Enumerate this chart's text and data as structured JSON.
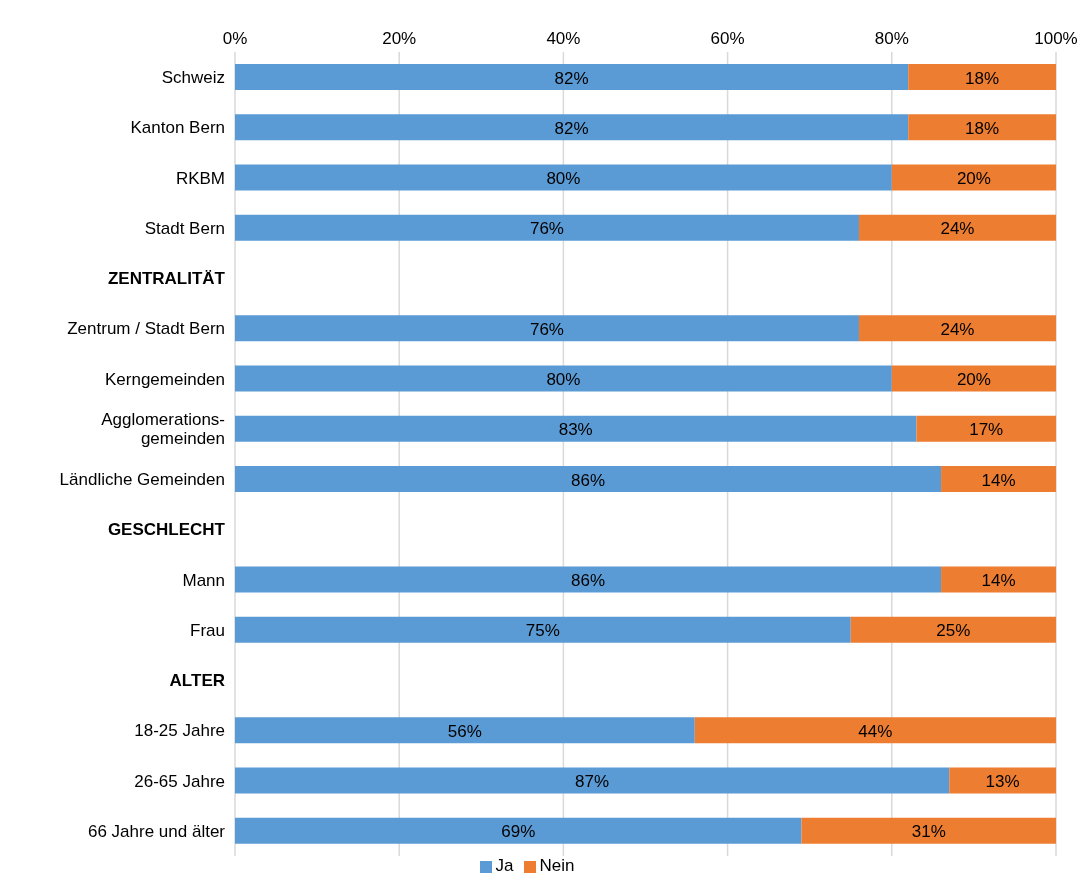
{
  "chart_data": {
    "type": "bar",
    "orientation": "horizontal",
    "stacked": true,
    "categories": [
      "Schweiz",
      "Kanton Bern",
      "RKBM",
      "Stadt Bern",
      "ZENTRALITÄT",
      "Zentrum / Stadt Bern",
      "Kerngemeinden",
      "Agglomerations-\ngemeinden",
      "Ländliche Gemeinden",
      "GESCHLECHT",
      "Mann",
      "Frau",
      "ALTER",
      "18-25 Jahre",
      "26-65 Jahre",
      "66 Jahre und älter"
    ],
    "series": [
      {
        "name": "Ja",
        "color": "#5b9bd5",
        "values": [
          82,
          82,
          80,
          76,
          null,
          76,
          80,
          83,
          86,
          null,
          86,
          75,
          null,
          56,
          87,
          69
        ],
        "value_labels": [
          "82%",
          "82%",
          "80%",
          "76%",
          null,
          "76%",
          "80%",
          "83%",
          "86%",
          null,
          "86%",
          "75%",
          null,
          "56%",
          "87%",
          "69%"
        ]
      },
      {
        "name": "Nein",
        "color": "#ed7d31",
        "values": [
          18,
          18,
          20,
          24,
          null,
          24,
          20,
          17,
          14,
          null,
          14,
          25,
          null,
          44,
          13,
          31
        ],
        "value_labels": [
          "18%",
          "18%",
          "20%",
          "24%",
          null,
          "24%",
          "20%",
          "17%",
          "14%",
          null,
          "14%",
          "25%",
          null,
          "44%",
          "13%",
          "31%"
        ]
      }
    ],
    "xlim": [
      0,
      100
    ],
    "xticks": [
      {
        "value": 0,
        "label": "0%"
      },
      {
        "value": 20,
        "label": "20%"
      },
      {
        "value": 40,
        "label": "40%"
      },
      {
        "value": 60,
        "label": "60%"
      },
      {
        "value": 80,
        "label": "80%"
      },
      {
        "value": 100,
        "label": "100%"
      }
    ],
    "grid": "x",
    "legend": "bottom"
  }
}
